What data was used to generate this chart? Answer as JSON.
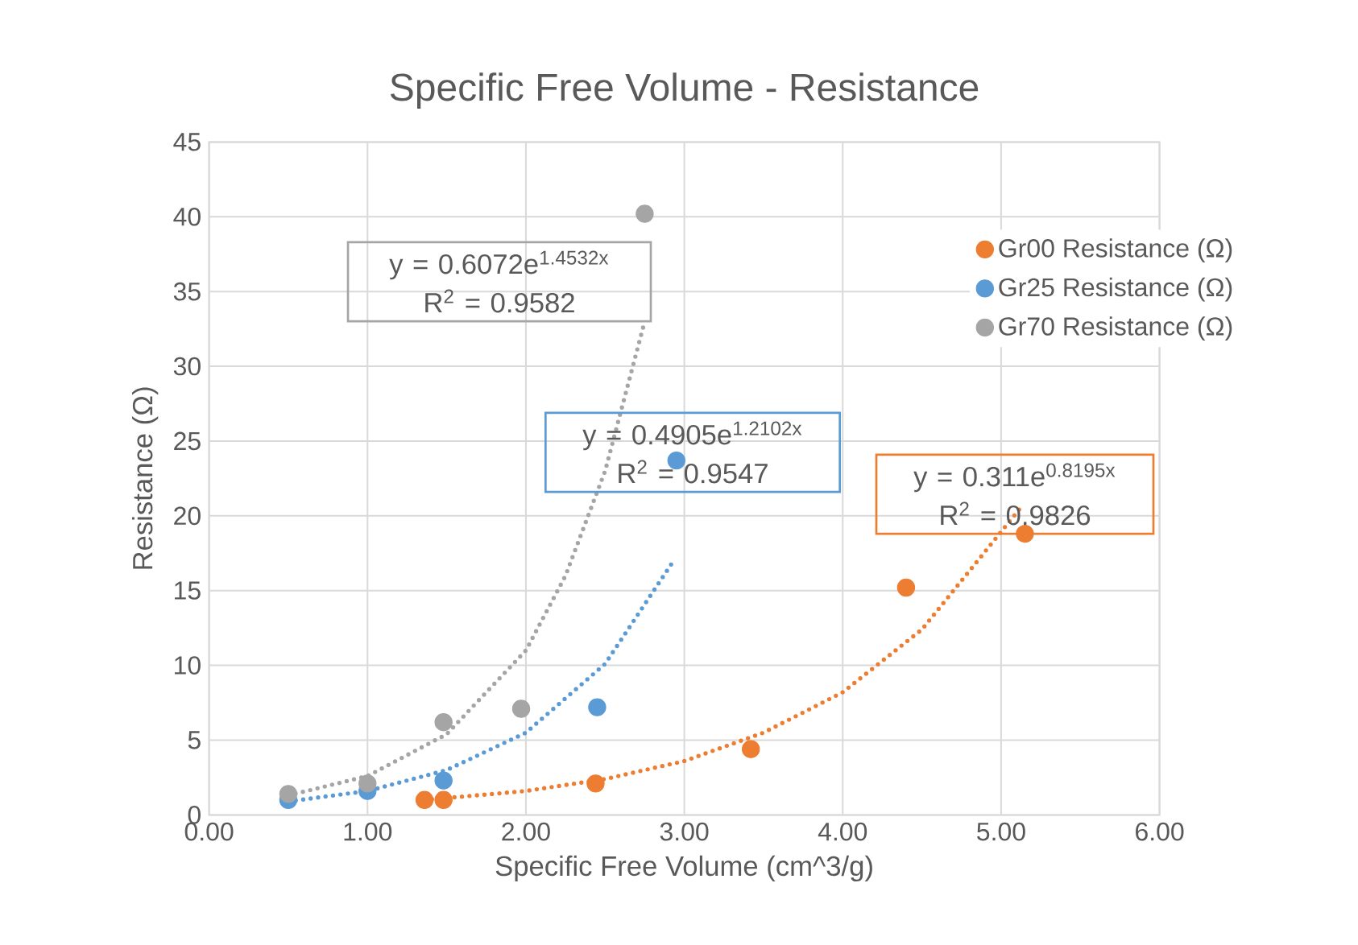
{
  "chart_data": {
    "type": "scatter",
    "title": "Specific Free Volume - Resistance",
    "xlabel": "Specific Free Volume (cm^3/g)",
    "ylabel": "Resistance (Ω)",
    "xlim": [
      0,
      6
    ],
    "ylim": [
      0,
      45
    ],
    "xticks": [
      {
        "value": 0,
        "label": "0.00"
      },
      {
        "value": 1,
        "label": "1.00"
      },
      {
        "value": 2,
        "label": "2.00"
      },
      {
        "value": 3,
        "label": "3.00"
      },
      {
        "value": 4,
        "label": "4.00"
      },
      {
        "value": 5,
        "label": "5.00"
      },
      {
        "value": 6,
        "label": "6.00"
      }
    ],
    "yticks": [
      0,
      5,
      10,
      15,
      20,
      25,
      30,
      35,
      40,
      45
    ],
    "grid": true,
    "legend": "top right",
    "series": [
      {
        "name": "Gr00 Resistance (Ω)",
        "marker": "circle",
        "color": "#ed7d31",
        "x": [
          1.36,
          1.48,
          2.44,
          3.42,
          4.4,
          5.15
        ],
        "values": [
          1.0,
          1.0,
          2.1,
          4.4,
          15.2,
          18.8
        ]
      },
      {
        "name": "Gr25 Resistance (Ω)",
        "marker": "circle",
        "color": "#5b9bd5",
        "x": [
          0.5,
          1.0,
          1.48,
          2.45,
          2.95
        ],
        "values": [
          1.0,
          1.6,
          2.3,
          7.2,
          23.7
        ]
      },
      {
        "name": "Gr70 Resistance (Ω)",
        "marker": "circle",
        "color": "#a5a5a5",
        "x": [
          0.5,
          1.0,
          1.48,
          1.97,
          2.75
        ],
        "values": [
          1.4,
          2.1,
          6.2,
          7.1,
          40.2
        ]
      },
      {
        "type": "line",
        "line_style": "dotted",
        "marker": "none",
        "color": "#a5a5a5",
        "x": [
          0.5,
          1.0,
          1.5,
          2.0,
          2.25,
          2.5,
          2.75
        ],
        "values": [
          1.3,
          2.6,
          5.4,
          11.0,
          16.0,
          23.0,
          33.0
        ]
      },
      {
        "type": "line",
        "line_style": "dotted",
        "marker": "none",
        "color": "#5b9bd5",
        "x": [
          0.5,
          1.0,
          1.5,
          2.0,
          2.5,
          2.92
        ],
        "values": [
          0.9,
          1.6,
          3.0,
          5.5,
          10.1,
          16.8
        ]
      },
      {
        "type": "line",
        "line_style": "dotted",
        "marker": "none",
        "color": "#ed7d31",
        "x": [
          1.36,
          2.0,
          2.5,
          3.0,
          3.5,
          4.0,
          4.5,
          5.12
        ],
        "values": [
          1.0,
          1.6,
          2.4,
          3.6,
          5.5,
          8.2,
          12.4,
          20.5
        ]
      }
    ],
    "annotations": [
      "y = 0.6072e$^{1.4532x}$",
      "R$^{2}$ = 0.9582",
      "y = 0.4905e$^{1.2102x}$",
      "R$^{2}$ = 0.9547",
      "y = 0.311e$^{0.8195x}$",
      "R$^{2}$ = 0.9826"
    ]
  }
}
